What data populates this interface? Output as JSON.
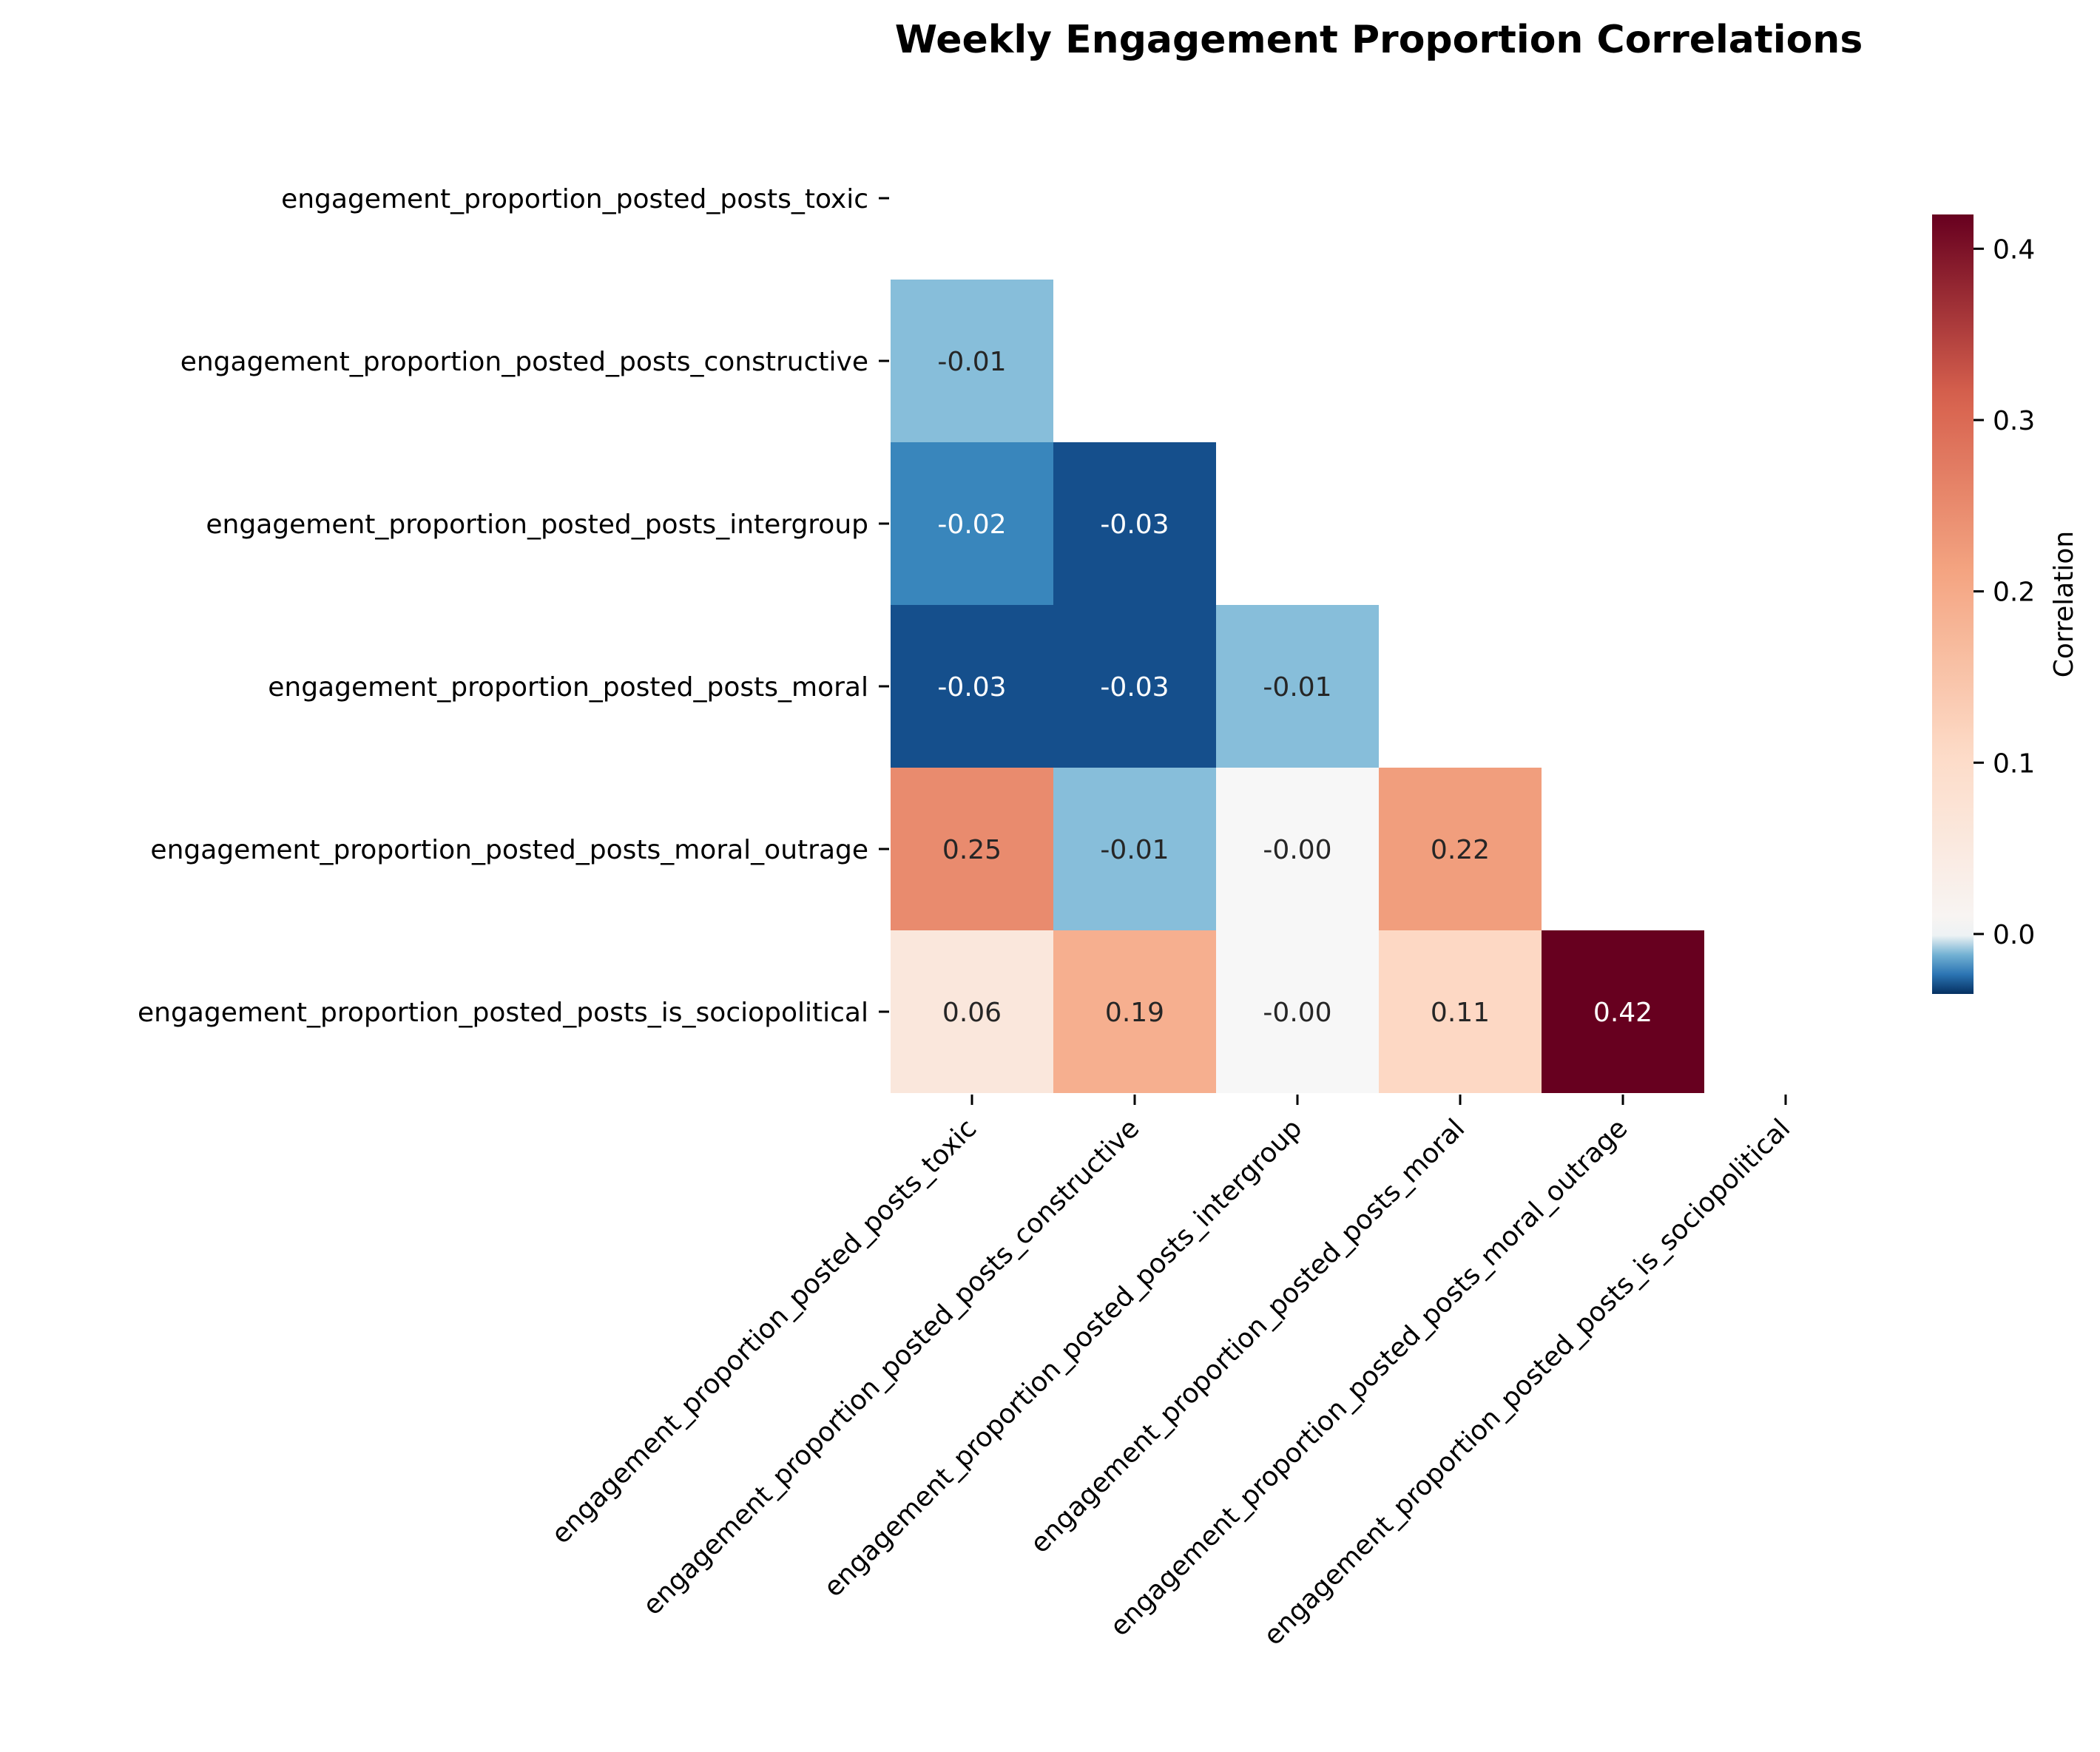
{
  "chart_data": {
    "type": "heatmap",
    "title": "Weekly Engagement Proportion Correlations",
    "variables": [
      "engagement_proportion_posted_posts_toxic",
      "engagement_proportion_posted_posts_constructive",
      "engagement_proportion_posted_posts_intergroup",
      "engagement_proportion_posted_posts_moral",
      "engagement_proportion_posted_posts_moral_outrage",
      "engagement_proportion_posted_posts_is_sociopolitical"
    ],
    "mask": "upper-triangle-including-diagonal",
    "matrix": [
      [
        null,
        null,
        null,
        null,
        null,
        null
      ],
      [
        -0.01,
        null,
        null,
        null,
        null,
        null
      ],
      [
        -0.02,
        -0.03,
        null,
        null,
        null,
        null
      ],
      [
        -0.03,
        -0.03,
        -0.01,
        null,
        null,
        null
      ],
      [
        0.25,
        -0.01,
        -0.0,
        0.22,
        null,
        null
      ],
      [
        0.06,
        0.19,
        -0.0,
        0.11,
        0.42,
        null
      ]
    ],
    "value_labels": [
      [
        null,
        null,
        null,
        null,
        null,
        null
      ],
      [
        "-0.01",
        null,
        null,
        null,
        null,
        null
      ],
      [
        "-0.02",
        "-0.03",
        null,
        null,
        null,
        null
      ],
      [
        "-0.03",
        "-0.03",
        "-0.01",
        null,
        null,
        null
      ],
      [
        "0.25",
        "-0.01",
        "-0.00",
        "0.22",
        null,
        null
      ],
      [
        "0.06",
        "0.19",
        "-0.00",
        "0.11",
        "0.42",
        null
      ]
    ],
    "colormap": "RdBu_r",
    "colorbar": {
      "label": "Correlation",
      "range": [
        -0.035,
        0.42
      ],
      "ticks": [
        0.0,
        0.1,
        0.2,
        0.3,
        0.4
      ],
      "tick_labels": [
        "0.0",
        "0.1",
        "0.2",
        "0.3",
        "0.4"
      ]
    },
    "grid": false,
    "colorbar_placement": "right"
  }
}
